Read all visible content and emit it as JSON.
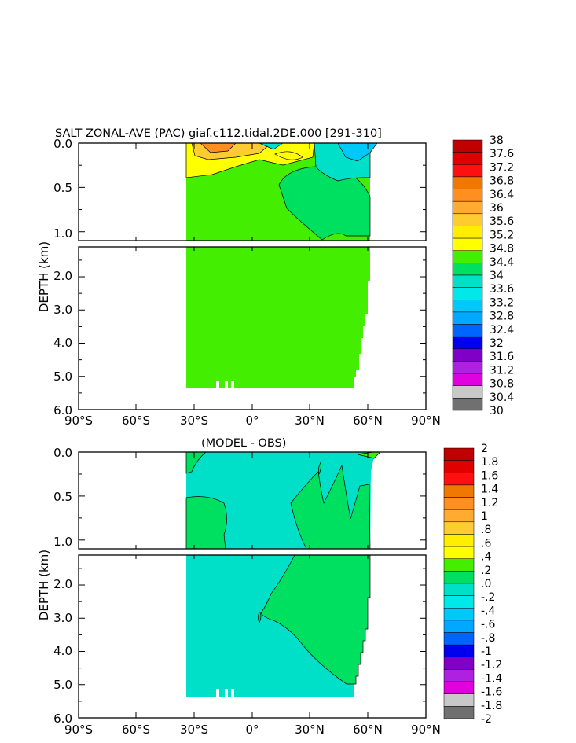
{
  "chart_data": [
    {
      "type": "heatmap",
      "title": "SALT ZONAL-AVE (PAC) giaf.c112.tidal.2DE.000 [291-310]",
      "ylabel": "DEPTH (km)",
      "x_ticks": [
        "90°S",
        "60°S",
        "30°S",
        "0°",
        "30°N",
        "60°N",
        "90°N"
      ],
      "y_ticks_upper": [
        "0.0",
        "0.5",
        "1.0"
      ],
      "y_ticks_lower": [
        "2.0",
        "3.0",
        "4.0",
        "5.0",
        "6.0"
      ],
      "xlim": [
        -90,
        90
      ],
      "ylim_upper": [
        0,
        1.1
      ],
      "ylim_lower": [
        1.1,
        6.0
      ],
      "colorbar_labels": [
        "38",
        "37.6",
        "37.2",
        "36.8",
        "36.4",
        "36",
        "35.6",
        "35.2",
        "34.8",
        "34.4",
        "34",
        "33.6",
        "33.2",
        "32.8",
        "32.4",
        "32",
        "31.6",
        "31.2",
        "30.8",
        "30.4",
        "30"
      ],
      "colorbar_colors": [
        "#c00000",
        "#e00000",
        "#ff1010",
        "#f07800",
        "#ff9020",
        "#ffaa30",
        "#ffcc30",
        "#ffee00",
        "#ffff00",
        "#44ee00",
        "#00e060",
        "#00e0c8",
        "#00e8e8",
        "#00c8f8",
        "#00a8ff",
        "#0064ff",
        "#0000ee",
        "#8000c8",
        "#b020e0",
        "#e000e0",
        "#c8c8c8",
        "#707070"
      ]
    },
    {
      "type": "heatmap",
      "title": "(MODEL - OBS)",
      "ylabel": "DEPTH (km)",
      "x_ticks": [
        "90°S",
        "60°S",
        "30°S",
        "0°",
        "30°N",
        "60°N",
        "90°N"
      ],
      "y_ticks_upper": [
        "0.0",
        "0.5",
        "1.0"
      ],
      "y_ticks_lower": [
        "2.0",
        "3.0",
        "4.0",
        "5.0",
        "6.0"
      ],
      "xlim": [
        -90,
        90
      ],
      "ylim_upper": [
        0,
        1.1
      ],
      "ylim_lower": [
        1.1,
        6.0
      ],
      "colorbar_labels": [
        "2",
        "1.8",
        "1.6",
        "1.4",
        "1.2",
        "1",
        ".8",
        ".6",
        ".4",
        ".2",
        ".0",
        "-.2",
        "-.4",
        "-.6",
        "-.8",
        "-1",
        "-1.2",
        "-1.4",
        "-1.6",
        "-1.8",
        "-2"
      ],
      "colorbar_colors": [
        "#c00000",
        "#e00000",
        "#ff1010",
        "#f07800",
        "#ff9020",
        "#ffaa30",
        "#ffcc30",
        "#ffee00",
        "#ffff00",
        "#44ee00",
        "#00e060",
        "#00e0c8",
        "#00e8e8",
        "#00c8f8",
        "#00a8ff",
        "#0064ff",
        "#0000ee",
        "#8000c8",
        "#b020e0",
        "#e000e0",
        "#c8c8c8",
        "#707070"
      ]
    }
  ]
}
